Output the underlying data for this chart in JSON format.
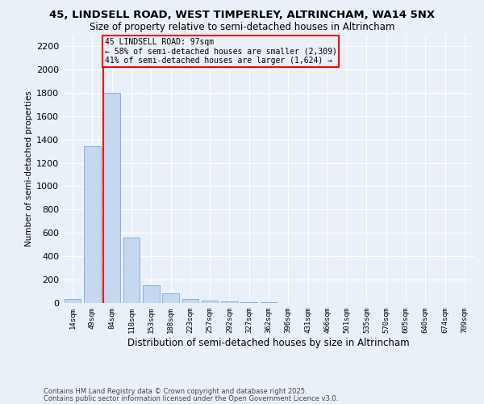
{
  "title": "45, LINDSELL ROAD, WEST TIMPERLEY, ALTRINCHAM, WA14 5NX",
  "subtitle": "Size of property relative to semi-detached houses in Altrincham",
  "xlabel": "Distribution of semi-detached houses by size in Altrincham",
  "ylabel": "Number of semi-detached properties",
  "footer1": "Contains HM Land Registry data © Crown copyright and database right 2025.",
  "footer2": "Contains public sector information licensed under the Open Government Licence v3.0.",
  "annotation_title": "45 LINDSELL ROAD: 97sqm",
  "annotation_line1": "← 58% of semi-detached houses are smaller (2,309)",
  "annotation_line2": "41% of semi-detached houses are larger (1,624) →",
  "bins": [
    "14sqm",
    "49sqm",
    "84sqm",
    "118sqm",
    "153sqm",
    "188sqm",
    "223sqm",
    "257sqm",
    "292sqm",
    "327sqm",
    "362sqm",
    "396sqm",
    "431sqm",
    "466sqm",
    "501sqm",
    "535sqm",
    "570sqm",
    "605sqm",
    "640sqm",
    "674sqm",
    "709sqm"
  ],
  "values": [
    35,
    1340,
    1800,
    560,
    150,
    80,
    35,
    20,
    15,
    8,
    5,
    2,
    1,
    0,
    0,
    0,
    0,
    0,
    0,
    0,
    0
  ],
  "bar_color": "#c5d8f0",
  "bar_edge_color": "#7aaad4",
  "red_line_index": 2,
  "ylim": [
    0,
    2300
  ],
  "yticks": [
    0,
    200,
    400,
    600,
    800,
    1000,
    1200,
    1400,
    1600,
    1800,
    2000,
    2200
  ],
  "bg_color": "#eaf0f8",
  "grid_color": "#ffffff",
  "title_fontsize": 10,
  "subtitle_fontsize": 9
}
